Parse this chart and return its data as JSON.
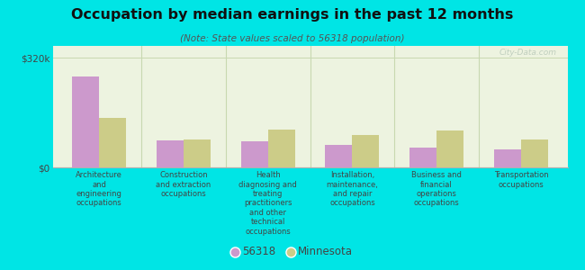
{
  "title": "Occupation by median earnings in the past 12 months",
  "subtitle": "(Note: State values scaled to 56318 population)",
  "categories": [
    "Architecture\nand\nengineering\noccupations",
    "Construction\nand extraction\noccupations",
    "Health\ndiagnosing and\ntreating\npractitioners\nand other\ntechnical\noccupations",
    "Installation,\nmaintenance,\nand repair\noccupations",
    "Business and\nfinancial\noperations\noccupations",
    "Transportation\noccupations"
  ],
  "values_56318": [
    265000,
    80000,
    75000,
    65000,
    58000,
    52000
  ],
  "values_minnesota": [
    145000,
    82000,
    110000,
    95000,
    108000,
    82000
  ],
  "color_56318": "#cc99cc",
  "color_minnesota": "#cccc88",
  "yticks": [
    0,
    320000
  ],
  "ytick_labels": [
    "$0",
    "$320k"
  ],
  "ylim": [
    0,
    355000
  ],
  "background_color": "#00e5e5",
  "plot_bg_color": "#edf3e0",
  "bar_width": 0.32,
  "watermark": "City-Data.com",
  "legend_labels": [
    "56318",
    "Minnesota"
  ],
  "separator_color": "#c8d8b0",
  "spine_color": "#b0b0b0"
}
